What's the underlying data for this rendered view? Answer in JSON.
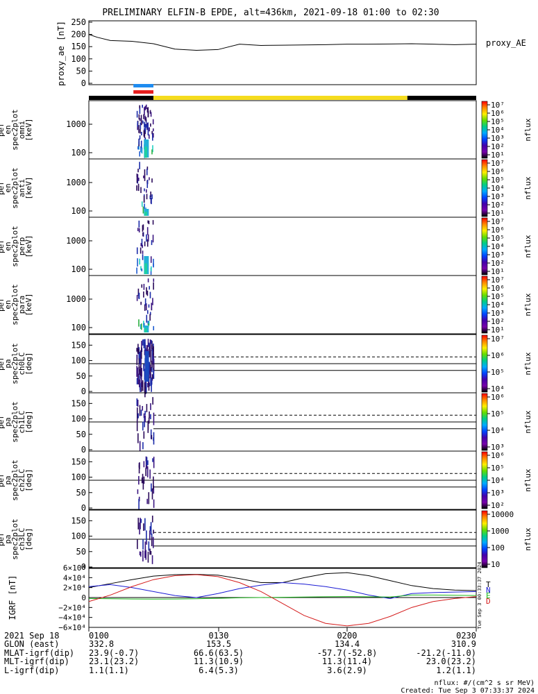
{
  "title": "PRELIMINARY ELFIN-B EPDE, alt=436km, 2021-09-18 01:00 to 02:30",
  "colors": {
    "black": "#000000",
    "bar_yellow": "#f5dc1e",
    "bar_blue": "#1e8cf0",
    "bar_red": "#e61e1e",
    "bx": "#1a1ad4",
    "by": "#1bb81b",
    "bz": "#d41a1a",
    "bt": "#000000"
  },
  "chart_data": [
    {
      "type": "line",
      "ylabel": "proxy_ae [nT]",
      "legend": "proxy_AE",
      "ylim": [
        0,
        250
      ],
      "yticks": [
        "250",
        "200",
        "150",
        "100",
        "50",
        "0"
      ],
      "x_minutes": [
        0,
        2,
        5,
        10,
        15,
        20,
        25,
        30,
        35,
        40,
        45,
        50,
        55,
        60,
        65,
        70,
        75,
        80,
        85,
        90
      ],
      "values": [
        200,
        188,
        175,
        172,
        162,
        140,
        135,
        138,
        160,
        155,
        156,
        157,
        158,
        160,
        160,
        161,
        162,
        160,
        158,
        160
      ]
    },
    {
      "type": "bar",
      "name": "data-availability",
      "segments": [
        {
          "start": 0,
          "end": 15,
          "color": "black"
        },
        {
          "start": 15,
          "end": 74,
          "color": "yellow"
        },
        {
          "start": 74,
          "end": 90,
          "color": "black"
        }
      ],
      "markers": [
        {
          "start": 11,
          "end": 15,
          "color": "blue"
        },
        {
          "start": 11,
          "end": 15,
          "color": "red"
        }
      ]
    },
    {
      "type": "heatmap",
      "ylabel": "elb pef en spec2plot omni [keV]",
      "yticks": [
        "1000",
        "100"
      ],
      "colorbar_label": "nflux",
      "colorbar_ticks": [
        "10⁷",
        "10⁶",
        "10⁵",
        "10⁴",
        "10³",
        "10²",
        "10¹"
      ]
    },
    {
      "type": "heatmap",
      "ylabel": "elb pef en spec2plot anti [keV]",
      "yticks": [
        "1000",
        "100"
      ],
      "colorbar_label": "nflux",
      "colorbar_ticks": [
        "10⁷",
        "10⁶",
        "10⁵",
        "10⁴",
        "10³",
        "10²",
        "10¹"
      ]
    },
    {
      "type": "heatmap",
      "ylabel": "elb pef en spec2plot perp [keV]",
      "yticks": [
        "1000",
        "100"
      ],
      "colorbar_label": "nflux",
      "colorbar_ticks": [
        "10⁷",
        "10⁶",
        "10⁵",
        "10⁴",
        "10³",
        "10²",
        "10¹"
      ]
    },
    {
      "type": "heatmap",
      "ylabel": "elb pef en spec2plot para [keV]",
      "yticks": [
        "1000",
        "100"
      ],
      "colorbar_label": "nflux",
      "colorbar_ticks": [
        "10⁷",
        "10⁶",
        "10⁵",
        "10⁴",
        "10³",
        "10²",
        "10¹"
      ]
    },
    {
      "type": "heatmap",
      "ylabel": "elb pef pa spec2plot ch0LC [deg]",
      "yticks": [
        "150",
        "100",
        "50",
        "0"
      ],
      "colorbar_label": "nflux",
      "colorbar_ticks": [
        "10⁷",
        "10⁶",
        "10⁵",
        "10⁴"
      ]
    },
    {
      "type": "heatmap",
      "ylabel": "elb pef pa spec2plot ch1LC [deg]",
      "yticks": [
        "150",
        "100",
        "50",
        "0"
      ],
      "colorbar_label": "nflux",
      "colorbar_ticks": [
        "10⁶",
        "10⁵",
        "10⁴",
        "10³"
      ]
    },
    {
      "type": "heatmap",
      "ylabel": "elb pef pa spec2plot ch2LC [deg]",
      "yticks": [
        "150",
        "100",
        "50",
        "0"
      ],
      "colorbar_label": "nflux",
      "colorbar_ticks": [
        "10⁶",
        "10⁵",
        "10⁴",
        "10³",
        "10²"
      ]
    },
    {
      "type": "heatmap",
      "ylabel": "elb pef pa spec2plot ch3LC [deg]",
      "yticks": [
        "150",
        "100",
        "50",
        "0"
      ],
      "colorbar_label": "nflux",
      "colorbar_ticks": [
        "10000",
        "1000",
        "100",
        "10"
      ]
    },
    {
      "type": "line",
      "ylabel": "IGRF [nT]",
      "ylim": [
        -60000,
        60000
      ],
      "yticks": [
        "6×10⁴",
        "4×10⁴",
        "2×10⁴",
        "0",
        "−2×10⁴",
        "−4×10⁴",
        "−6×10⁴"
      ],
      "legend": [
        "T",
        "N",
        "E",
        "D"
      ],
      "x_minutes": [
        0,
        5,
        10,
        15,
        20,
        25,
        30,
        35,
        40,
        45,
        50,
        55,
        60,
        65,
        70,
        75,
        80,
        85,
        90
      ],
      "series": [
        {
          "name": "T",
          "values": [
            20000,
            28000,
            36000,
            43000,
            46000,
            46500,
            45000,
            38000,
            30000,
            30000,
            40000,
            48000,
            50000,
            44000,
            34000,
            24000,
            18000,
            15000,
            14000
          ]
        },
        {
          "name": "N",
          "values": [
            22000,
            26000,
            20000,
            12000,
            4000,
            0,
            8000,
            18000,
            25000,
            30000,
            27000,
            22000,
            15000,
            5000,
            -2000,
            8000,
            10000,
            11000,
            12000
          ]
        },
        {
          "name": "E",
          "values": [
            -2000,
            -2500,
            -3000,
            -3200,
            -3000,
            -2500,
            -1500,
            -500,
            0,
            500,
            1000,
            1500,
            2000,
            1500,
            1000,
            5000,
            5000,
            4500,
            4000
          ]
        },
        {
          "name": "D",
          "values": [
            -8000,
            5000,
            22000,
            36000,
            44000,
            46000,
            42000,
            30000,
            12000,
            -12000,
            -36000,
            -52000,
            -57000,
            -52000,
            -38000,
            -20000,
            -8000,
            -2000,
            2000
          ]
        }
      ]
    }
  ],
  "axis_footer": {
    "row_labels": [
      "2021 Sep 18",
      "GLON (east)",
      "MLAT-igrf(dip)",
      "MLT-igrf(dip)",
      "L-igrf(dip)"
    ],
    "columns": [
      [
        "0100",
        "332.8",
        "23.9(-0.7)",
        "23.1(23.2)",
        "1.1(1.1)"
      ],
      [
        "0130",
        "153.5",
        "66.6(63.5)",
        "11.3(10.9)",
        "6.4(5.3)"
      ],
      [
        "0200",
        "134.4",
        "-57.7(-52.8)",
        "11.3(11.4)",
        "3.6(2.9)"
      ],
      [
        "0230",
        "310.9",
        "-21.2(-11.0)",
        "23.0(23.2)",
        "1.2(1.1)"
      ]
    ]
  },
  "footnote": "nflux: #/(cm^2 s sr MeV)",
  "created": "Created: Tue Sep  3 07:33:37 2024",
  "side_stamp": "Tue Sep 3 00:33:37 2024"
}
